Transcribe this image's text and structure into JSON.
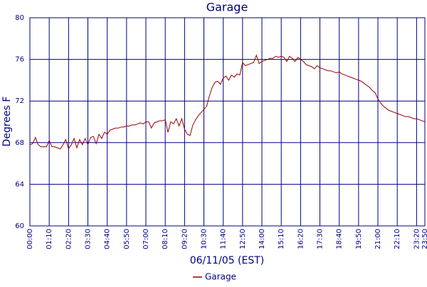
{
  "chart_data": {
    "type": "line",
    "title": "Garage",
    "xlabel": "06/11/05 (EST)",
    "ylabel": "Degrees F",
    "x": [
      0,
      10,
      20,
      30,
      40,
      50,
      60,
      70,
      80,
      90,
      100,
      110,
      120,
      130,
      140,
      150,
      160,
      170,
      180,
      190,
      200,
      210,
      220,
      230,
      240,
      250,
      260,
      270,
      280,
      290,
      300,
      310,
      320,
      330,
      340,
      350,
      360,
      370,
      380,
      390,
      400,
      410,
      420,
      430,
      440,
      450,
      460,
      470,
      480,
      490,
      500,
      510,
      520,
      530,
      540,
      550,
      560,
      570,
      580,
      590,
      600,
      610,
      620,
      630,
      640,
      650,
      660,
      670,
      680,
      690,
      700,
      710,
      720,
      730,
      740,
      750,
      760,
      770,
      780,
      790,
      800,
      810,
      820,
      830,
      840,
      850,
      860,
      870,
      880,
      890,
      900,
      910,
      920,
      930,
      940,
      950,
      960,
      970,
      980,
      990,
      1000,
      1010,
      1020,
      1030,
      1040,
      1050,
      1060,
      1070,
      1080,
      1090,
      1100,
      1110,
      1120,
      1130,
      1140,
      1150,
      1160,
      1170,
      1180,
      1190,
      1200,
      1210,
      1220,
      1230,
      1240,
      1250,
      1260,
      1270,
      1280,
      1290,
      1300,
      1310,
      1320,
      1330,
      1340,
      1350,
      1360,
      1370,
      1380,
      1390,
      1400,
      1410,
      1420,
      1430
    ],
    "series": [
      {
        "name": "Garage",
        "color": "#990000",
        "values": [
          67.8,
          67.9,
          68.5,
          67.8,
          67.6,
          67.6,
          67.6,
          68.2,
          67.6,
          67.6,
          67.5,
          67.4,
          67.8,
          68.3,
          67.4,
          67.8,
          68.4,
          67.5,
          68.3,
          67.8,
          68.4,
          67.8,
          68.5,
          68.6,
          67.9,
          68.8,
          68.4,
          69.0,
          68.8,
          69.2,
          69.3,
          69.4,
          69.4,
          69.5,
          69.5,
          69.6,
          69.6,
          69.7,
          69.7,
          69.8,
          69.9,
          69.8,
          70.0,
          70.0,
          69.4,
          69.9,
          70.0,
          70.1,
          70.1,
          70.2,
          69.0,
          70.0,
          69.8,
          70.3,
          69.6,
          70.3,
          69.3,
          68.8,
          68.7,
          69.7,
          70.2,
          70.6,
          70.9,
          71.2,
          71.5,
          72.5,
          73.3,
          73.8,
          73.9,
          73.6,
          74.2,
          74.4,
          74.0,
          74.5,
          74.3,
          74.6,
          74.5,
          75.7,
          75.4,
          75.5,
          75.6,
          75.7,
          76.4,
          75.6,
          75.8,
          75.9,
          76.0,
          76.1,
          76.1,
          76.3,
          76.2,
          76.3,
          76.2,
          75.8,
          76.3,
          76.1,
          75.8,
          76.2,
          76.0,
          75.8,
          75.5,
          75.4,
          75.3,
          75.1,
          75.4,
          75.2,
          75.1,
          75.0,
          74.9,
          74.9,
          74.8,
          74.7,
          74.8,
          74.6,
          74.5,
          74.4,
          74.3,
          74.2,
          74.1,
          74.0,
          73.9,
          73.7,
          73.5,
          73.3,
          73.0,
          72.8,
          72.2,
          71.8,
          71.5,
          71.3,
          71.1,
          71.0,
          70.9,
          70.8,
          70.7,
          70.6,
          70.5,
          70.5,
          70.4,
          70.3,
          70.3,
          70.2,
          70.1,
          70.0
        ]
      }
    ],
    "xlim": [
      0,
      1430
    ],
    "xticks": [
      {
        "value": 0,
        "label": "00:00"
      },
      {
        "value": 70,
        "label": "01:10"
      },
      {
        "value": 140,
        "label": "02:20"
      },
      {
        "value": 210,
        "label": "03:30"
      },
      {
        "value": 280,
        "label": "04:40"
      },
      {
        "value": 350,
        "label": "05:50"
      },
      {
        "value": 420,
        "label": "07:00"
      },
      {
        "value": 490,
        "label": "08:10"
      },
      {
        "value": 560,
        "label": "09:20"
      },
      {
        "value": 630,
        "label": "10:30"
      },
      {
        "value": 700,
        "label": "11:40"
      },
      {
        "value": 770,
        "label": "12:50"
      },
      {
        "value": 840,
        "label": "14:00"
      },
      {
        "value": 910,
        "label": "15:10"
      },
      {
        "value": 980,
        "label": "16:20"
      },
      {
        "value": 1050,
        "label": "17:30"
      },
      {
        "value": 1120,
        "label": "18:40"
      },
      {
        "value": 1190,
        "label": "19:50"
      },
      {
        "value": 1260,
        "label": "21:00"
      },
      {
        "value": 1330,
        "label": "22:10"
      },
      {
        "value": 1400,
        "label": "23:20"
      },
      {
        "value": 1430,
        "label": "23:50"
      }
    ],
    "ylim": [
      60,
      80
    ],
    "yticks": [
      60,
      64,
      68,
      72,
      76,
      80
    ],
    "grid": true,
    "grid_color": "#000080",
    "text_color": "#000080"
  }
}
